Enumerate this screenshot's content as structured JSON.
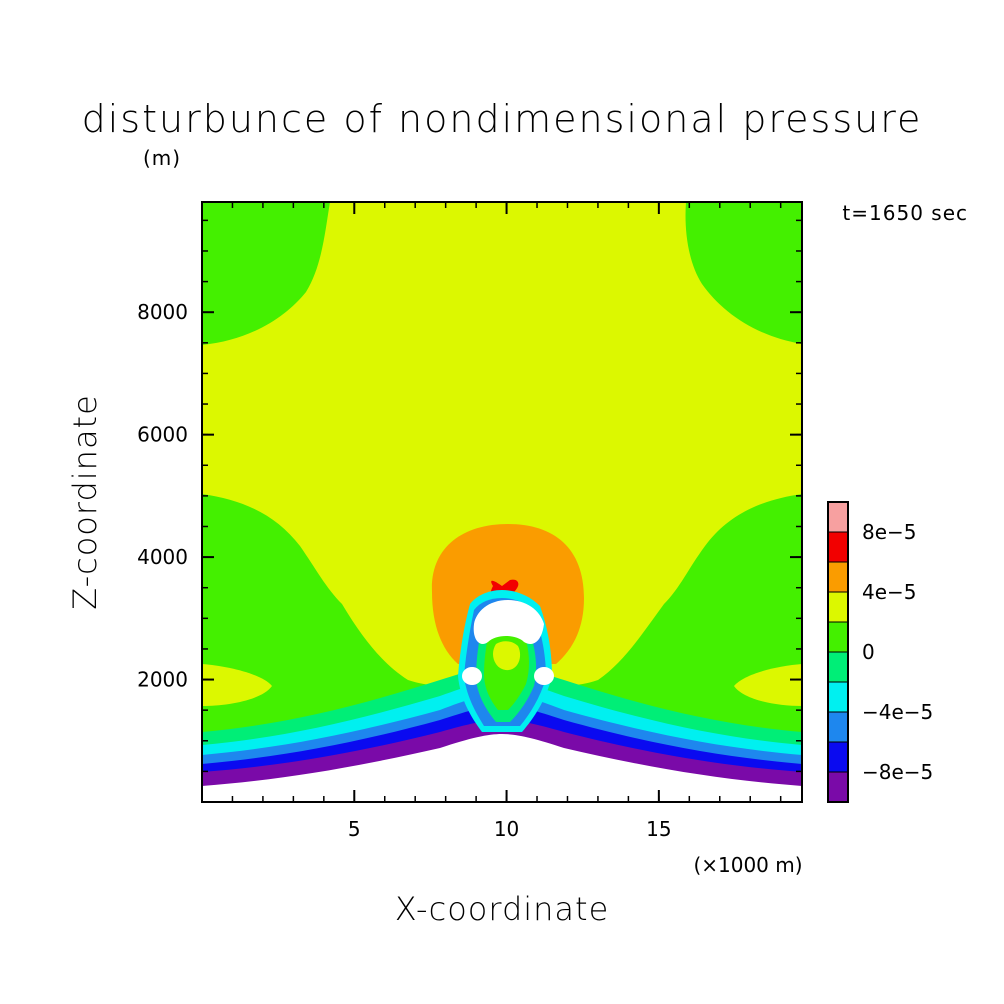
{
  "chart_data": {
    "type": "heatmap",
    "title": "disturbunce of nondimensional pressure",
    "y_unit": "(m)",
    "time_label": "t=1650 sec",
    "xlabel": "X-coordinate",
    "x_unit": "(×1000 m)",
    "ylabel": "Z-coordinate",
    "xlim": [
      0,
      19.7
    ],
    "ylim": [
      0,
      9800
    ],
    "x_ticks": [
      {
        "value": 5,
        "label": "5"
      },
      {
        "value": 10,
        "label": "10"
      },
      {
        "value": 15,
        "label": "15"
      }
    ],
    "y_ticks": [
      {
        "value": 2000,
        "label": "2000"
      },
      {
        "value": 4000,
        "label": "4000"
      },
      {
        "value": 6000,
        "label": "6000"
      },
      {
        "value": 8000,
        "label": "8000"
      }
    ],
    "colorbar": {
      "levels": [
        {
          "low": -0.0001,
          "high": -8e-05,
          "color": "#7a0aa8"
        },
        {
          "low": -8e-05,
          "high": -6e-05,
          "color": "#0a0af0"
        },
        {
          "low": -6e-05,
          "high": -4e-05,
          "color": "#1e87ee"
        },
        {
          "low": -4e-05,
          "high": -2e-05,
          "color": "#00f0f0"
        },
        {
          "low": -2e-05,
          "high": 0,
          "color": "#00ee77"
        },
        {
          "low": 0,
          "high": 2e-05,
          "color": "#44f000"
        },
        {
          "low": 2e-05,
          "high": 4e-05,
          "color": "#dcf800"
        },
        {
          "low": 4e-05,
          "high": 6e-05,
          "color": "#fa9c00"
        },
        {
          "low": 6e-05,
          "high": 8e-05,
          "color": "#f20000"
        },
        {
          "low": 8e-05,
          "high": 0.0001,
          "color": "#f7a0a0"
        }
      ],
      "tick_labels": [
        {
          "value": -8e-05,
          "label": "−8e−5"
        },
        {
          "value": -4e-05,
          "label": "−4e−5"
        },
        {
          "value": 0,
          "label": "0"
        },
        {
          "value": 4e-05,
          "label": "4e−5"
        },
        {
          "value": 8e-05,
          "label": "8e−5"
        }
      ]
    },
    "undefined_color": "#ffffff"
  }
}
